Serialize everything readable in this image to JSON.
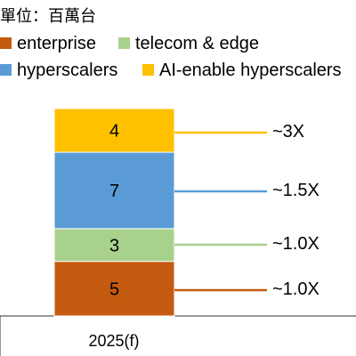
{
  "chart_data": {
    "type": "bar",
    "stacked": true,
    "unit_label": "單位：百萬台",
    "categories": [
      "2025(f)"
    ],
    "series": [
      {
        "name": "enterprise",
        "values": [
          5
        ],
        "color": "#C55A11",
        "ratio": "~1.0X"
      },
      {
        "name": "telecom & edge",
        "values": [
          3
        ],
        "color": "#A9D18E",
        "ratio": "~1.0X"
      },
      {
        "name": "hyperscalers",
        "values": [
          7
        ],
        "color": "#5B9BD5",
        "ratio": "~1.5X"
      },
      {
        "name": "AI-enable hyperscalers",
        "values": [
          4
        ],
        "color": "#FFC000",
        "ratio": "~3X"
      }
    ],
    "legend_order": [
      "enterprise",
      "telecom & edge",
      "hyperscalers",
      "AI-enable hyperscalers"
    ],
    "legend_placement": "top",
    "grid": false,
    "ylim": [
      0,
      19
    ]
  }
}
